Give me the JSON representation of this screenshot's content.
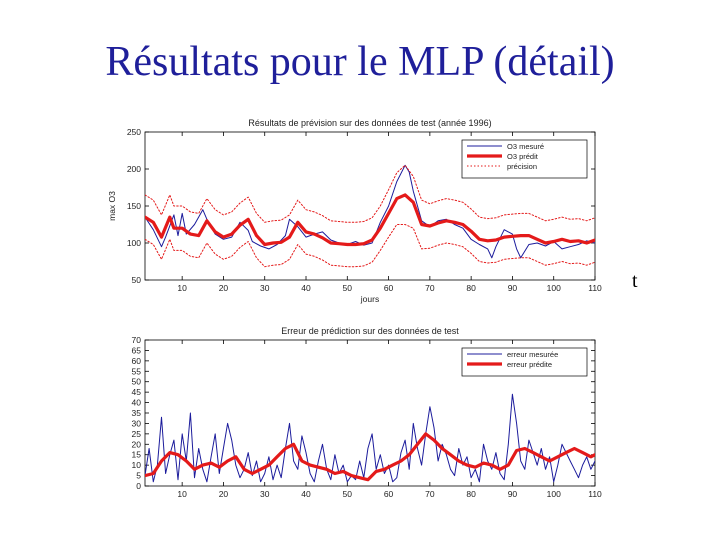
{
  "slide": {
    "title": "Résultats pour le MLP (détail)",
    "stray_letter": "t"
  },
  "chart_data": [
    {
      "type": "line",
      "title": "Résultats de prévision sur des données de test (année 1996)",
      "xlabel": "jours",
      "ylabel": "max O3",
      "xlim": [
        1,
        110
      ],
      "ylim": [
        50,
        250
      ],
      "xticks": [
        10,
        20,
        30,
        40,
        50,
        60,
        70,
        80,
        90,
        100,
        110
      ],
      "yticks": [
        50,
        100,
        150,
        200,
        250
      ],
      "legend_position": "top-right",
      "grid": false,
      "series": [
        {
          "name": "O3 mesuré",
          "color": "#1c1c9c",
          "style": "solid-thin",
          "x": [
            1,
            3,
            5,
            6,
            8,
            9,
            10,
            11,
            13,
            15,
            16,
            18,
            20,
            22,
            24,
            26,
            27,
            29,
            31,
            33,
            35,
            36,
            38,
            40,
            42,
            44,
            46,
            48,
            50,
            52,
            54,
            56,
            58,
            60,
            62,
            64,
            65,
            66,
            67,
            68,
            70,
            72,
            74,
            76,
            78,
            80,
            82,
            84,
            85,
            86,
            88,
            90,
            91,
            92,
            94,
            96,
            98,
            100,
            102,
            104,
            106,
            108,
            110
          ],
          "values": [
            135,
            118,
            95,
            108,
            138,
            110,
            140,
            112,
            125,
            145,
            132,
            112,
            105,
            108,
            128,
            117,
            102,
            96,
            92,
            98,
            110,
            132,
            122,
            108,
            112,
            115,
            104,
            100,
            98,
            102,
            97,
            100,
            128,
            150,
            183,
            205,
            196,
            170,
            150,
            130,
            122,
            130,
            132,
            125,
            120,
            105,
            98,
            92,
            80,
            95,
            118,
            112,
            92,
            80,
            98,
            100,
            96,
            102,
            92,
            95,
            98,
            103,
            100
          ]
        },
        {
          "name": "O3 prédit",
          "color": "#e41a1a",
          "style": "solid-thick",
          "x": [
            1,
            3,
            5,
            7,
            8,
            10,
            12,
            14,
            16,
            18,
            20,
            22,
            24,
            26,
            28,
            30,
            32,
            34,
            36,
            38,
            40,
            42,
            44,
            46,
            48,
            50,
            52,
            54,
            56,
            58,
            60,
            62,
            64,
            66,
            68,
            70,
            72,
            74,
            76,
            78,
            80,
            82,
            84,
            86,
            88,
            90,
            92,
            94,
            96,
            98,
            100,
            102,
            104,
            106,
            108,
            110
          ],
          "values": [
            135,
            128,
            108,
            135,
            120,
            120,
            112,
            110,
            130,
            115,
            108,
            112,
            124,
            132,
            110,
            98,
            100,
            101,
            108,
            128,
            115,
            112,
            107,
            100,
            99,
            98,
            98,
            99,
            104,
            120,
            140,
            160,
            165,
            155,
            125,
            123,
            127,
            130,
            128,
            125,
            116,
            105,
            103,
            104,
            108,
            109,
            110,
            110,
            105,
            100,
            102,
            105,
            102,
            103,
            100,
            104
          ]
        },
        {
          "name": "précision",
          "color": "#e41a1a",
          "style": "dotted",
          "x": [
            1,
            3,
            5,
            7,
            8,
            10,
            12,
            14,
            16,
            18,
            20,
            22,
            24,
            26,
            28,
            30,
            32,
            34,
            36,
            38,
            40,
            42,
            44,
            46,
            48,
            50,
            52,
            54,
            56,
            58,
            60,
            62,
            64,
            66,
            68,
            70,
            72,
            74,
            76,
            78,
            80,
            82,
            84,
            86,
            88,
            90,
            92,
            94,
            96,
            98,
            100,
            102,
            104,
            106,
            108,
            110
          ],
          "values": [
            165,
            158,
            138,
            165,
            150,
            150,
            142,
            140,
            160,
            145,
            138,
            142,
            154,
            162,
            140,
            128,
            130,
            131,
            138,
            158,
            145,
            142,
            137,
            130,
            129,
            128,
            128,
            129,
            134,
            150,
            172,
            195,
            205,
            190,
            158,
            153,
            157,
            160,
            158,
            155,
            146,
            135,
            133,
            134,
            138,
            139,
            140,
            140,
            135,
            130,
            132,
            135,
            132,
            133,
            130,
            134
          ]
        },
        {
          "name": "",
          "color": "#e41a1a",
          "style": "dotted",
          "x": [
            1,
            3,
            5,
            7,
            8,
            10,
            12,
            14,
            16,
            18,
            20,
            22,
            24,
            26,
            28,
            30,
            32,
            34,
            36,
            38,
            40,
            42,
            44,
            46,
            48,
            50,
            52,
            54,
            56,
            58,
            60,
            62,
            64,
            66,
            68,
            70,
            72,
            74,
            76,
            78,
            80,
            82,
            84,
            86,
            88,
            90,
            92,
            94,
            96,
            98,
            100,
            102,
            104,
            106,
            108,
            110
          ],
          "values": [
            105,
            98,
            78,
            105,
            90,
            90,
            82,
            80,
            100,
            85,
            78,
            82,
            94,
            102,
            80,
            68,
            70,
            71,
            78,
            98,
            85,
            82,
            77,
            70,
            69,
            68,
            68,
            69,
            74,
            90,
            108,
            125,
            125,
            120,
            92,
            93,
            97,
            100,
            98,
            95,
            86,
            75,
            73,
            74,
            78,
            79,
            80,
            80,
            75,
            70,
            72,
            75,
            72,
            73,
            70,
            74
          ]
        }
      ]
    },
    {
      "type": "line",
      "title": "Erreur de prédiction sur des données de test",
      "xlabel": "",
      "ylabel": "",
      "xlim": [
        1,
        110
      ],
      "ylim": [
        0,
        70
      ],
      "xticks": [
        10,
        20,
        30,
        40,
        50,
        60,
        70,
        80,
        90,
        100,
        110
      ],
      "yticks": [
        0,
        5,
        10,
        15,
        20,
        25,
        30,
        35,
        40,
        45,
        50,
        55,
        60,
        65,
        70
      ],
      "legend_position": "top-right",
      "grid": false,
      "series": [
        {
          "name": "erreur mesurée",
          "color": "#1c1c9c",
          "style": "solid-thin",
          "x": [
            1,
            2,
            3,
            4,
            5,
            6,
            7,
            8,
            9,
            10,
            11,
            12,
            13,
            14,
            15,
            16,
            17,
            18,
            19,
            20,
            21,
            22,
            23,
            24,
            25,
            26,
            27,
            28,
            29,
            30,
            31,
            32,
            33,
            34,
            35,
            36,
            37,
            38,
            39,
            40,
            41,
            42,
            43,
            44,
            45,
            46,
            47,
            48,
            49,
            50,
            51,
            52,
            53,
            54,
            55,
            56,
            57,
            58,
            59,
            60,
            61,
            62,
            63,
            64,
            65,
            66,
            67,
            68,
            69,
            70,
            71,
            72,
            73,
            74,
            75,
            76,
            77,
            78,
            79,
            80,
            81,
            82,
            83,
            84,
            85,
            86,
            87,
            88,
            89,
            90,
            91,
            92,
            93,
            94,
            95,
            96,
            97,
            98,
            99,
            100,
            101,
            102,
            103,
            104,
            105,
            106,
            107,
            108,
            109,
            110
          ],
          "values": [
            5,
            18,
            2,
            10,
            33,
            6,
            15,
            22,
            3,
            25,
            12,
            35,
            4,
            18,
            8,
            2,
            14,
            25,
            6,
            18,
            30,
            22,
            10,
            4,
            8,
            16,
            5,
            12,
            2,
            6,
            14,
            3,
            10,
            4,
            18,
            30,
            12,
            8,
            24,
            16,
            6,
            2,
            12,
            20,
            8,
            3,
            15,
            6,
            10,
            2,
            5,
            3,
            12,
            4,
            18,
            25,
            8,
            15,
            6,
            10,
            2,
            4,
            16,
            22,
            8,
            30,
            18,
            10,
            25,
            38,
            28,
            12,
            20,
            15,
            8,
            5,
            18,
            10,
            14,
            4,
            8,
            2,
            20,
            12,
            8,
            16,
            6,
            3,
            20,
            44,
            30,
            12,
            8,
            22,
            16,
            10,
            18,
            8,
            14,
            2,
            10,
            20,
            16,
            12,
            8,
            4,
            10,
            14,
            8,
            12
          ]
        },
        {
          "name": "erreur prédite",
          "color": "#e41a1a",
          "style": "solid-thick",
          "x": [
            1,
            3,
            5,
            7,
            9,
            11,
            13,
            15,
            17,
            19,
            21,
            23,
            25,
            27,
            29,
            31,
            33,
            35,
            37,
            39,
            41,
            43,
            45,
            47,
            49,
            51,
            53,
            55,
            57,
            59,
            61,
            63,
            65,
            67,
            69,
            71,
            73,
            75,
            77,
            79,
            81,
            83,
            85,
            87,
            89,
            91,
            93,
            95,
            97,
            99,
            101,
            103,
            105,
            107,
            109,
            110
          ],
          "values": [
            5,
            6,
            12,
            16,
            15,
            12,
            8,
            10,
            11,
            9,
            12,
            14,
            8,
            6,
            8,
            10,
            14,
            18,
            20,
            12,
            10,
            9,
            8,
            6,
            7,
            5,
            4,
            3,
            7,
            8,
            10,
            12,
            15,
            20,
            25,
            22,
            18,
            15,
            12,
            10,
            9,
            11,
            10,
            8,
            10,
            17,
            18,
            16,
            14,
            12,
            14,
            16,
            18,
            16,
            14,
            15
          ]
        }
      ]
    }
  ]
}
